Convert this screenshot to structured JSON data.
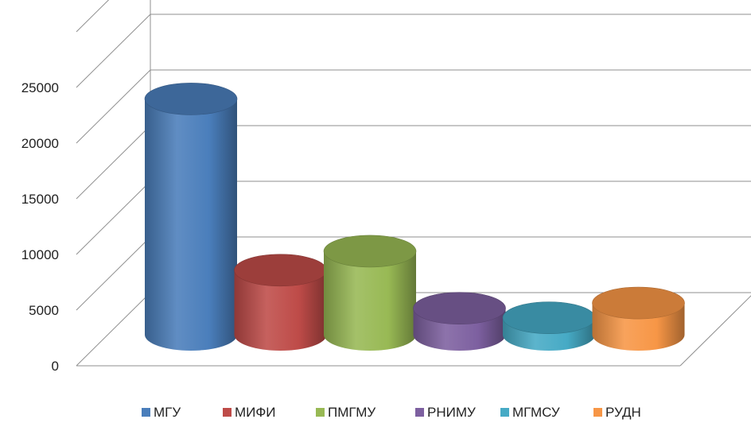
{
  "chart_data": {
    "type": "bar",
    "style": "3d-cylinder",
    "categories": [
      "МГУ",
      "МИФИ",
      "ПМГМУ",
      "РНИМУ",
      "МГМСУ",
      "РУДН"
    ],
    "values": [
      21700,
      5500,
      7300,
      1900,
      1000,
      2400
    ],
    "colors": [
      "#4a7ebb",
      "#be4b48",
      "#98b954",
      "#7d60a0",
      "#46aac5",
      "#f79646"
    ],
    "yticks": [
      "0",
      "5000",
      "10000",
      "15000",
      "20000",
      "25000"
    ],
    "ylim": [
      0,
      30000
    ],
    "grid": true,
    "legend_position": "bottom",
    "title": "",
    "xlabel": "",
    "ylabel": ""
  }
}
